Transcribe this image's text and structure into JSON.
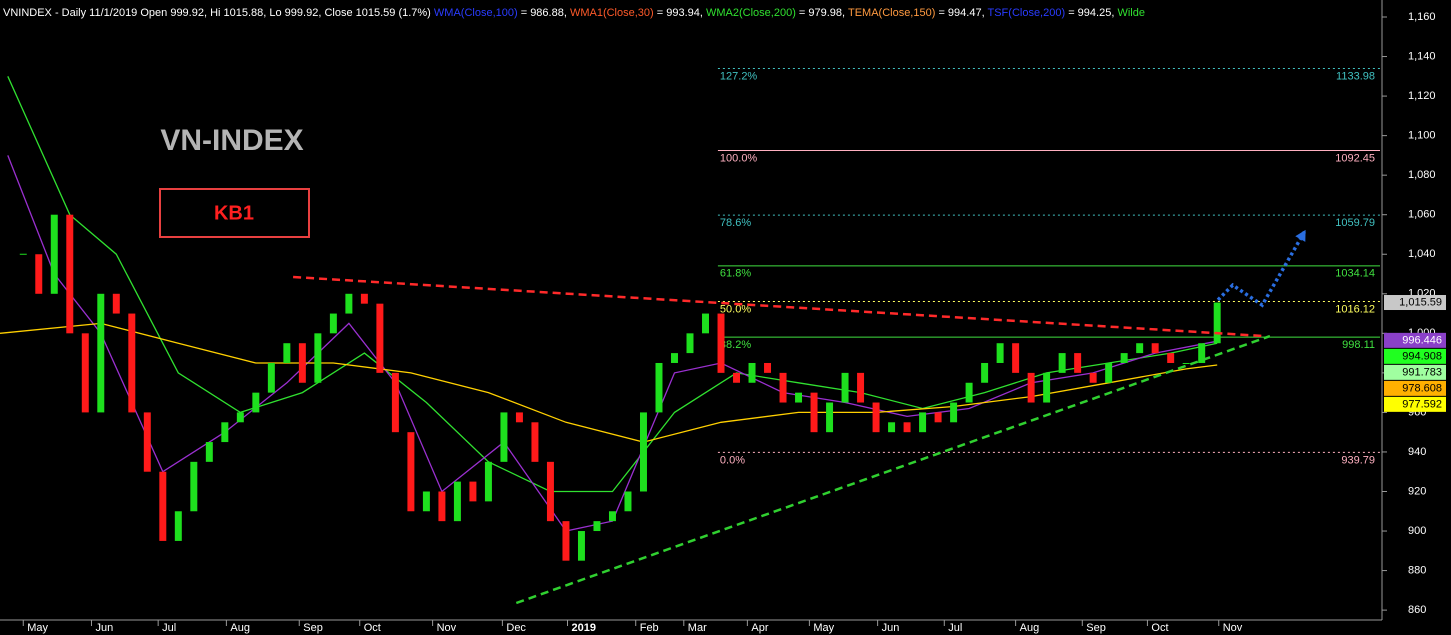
{
  "header": [
    {
      "text": "VNINDEX - Daily 11/1/2019 Open 999.92, Hi 1015.88, Lo 999.92, Close 1015.59 (1.7%) ",
      "color": "#ffffff"
    },
    {
      "text": "WMA(Close,100)",
      "color": "#2a3cff"
    },
    {
      "text": " = 986.88, ",
      "color": "#ffffff"
    },
    {
      "text": "WMA1(Close,30)",
      "color": "#ff5a2a"
    },
    {
      "text": " = 993.94, ",
      "color": "#ffffff"
    },
    {
      "text": "WMA2(Close,200)",
      "color": "#30e030"
    },
    {
      "text": " = 979.98, ",
      "color": "#ffffff"
    },
    {
      "text": "TEMA(Close,150)",
      "color": "#ff9a40"
    },
    {
      "text": " = 994.47, ",
      "color": "#ffffff"
    },
    {
      "text": "TSF(Close,200)",
      "color": "#2a3cff"
    },
    {
      "text": " = 994.25, ",
      "color": "#ffffff"
    },
    {
      "text": "Wilde",
      "color": "#30e030"
    }
  ],
  "chart_data": {
    "type": "candlestick",
    "title": "VN-INDEX",
    "badge": "KB1",
    "up_color": "#1ee01e",
    "down_color": "#ff1a1a",
    "values": [
      1040,
      1020,
      1060,
      1000,
      960,
      1020,
      1010,
      960,
      930,
      895,
      910,
      935,
      945,
      955,
      960,
      970,
      985,
      995,
      975,
      1000,
      1010,
      1020,
      1015,
      980,
      950,
      910,
      920,
      905,
      925,
      915,
      935,
      960,
      955,
      935,
      905,
      885,
      900,
      905,
      910,
      920,
      960,
      985,
      990,
      1000,
      1010,
      980,
      975,
      985,
      980,
      965,
      970,
      950,
      965,
      980,
      965,
      950,
      955,
      950,
      960,
      955,
      965,
      975,
      985,
      995,
      980,
      965,
      980,
      990,
      980,
      975,
      985,
      990,
      995,
      990,
      985,
      985,
      995,
      1015.59
    ],
    "xlim": [
      -1.5,
      87.5
    ],
    "xticks": [
      {
        "value": 0,
        "label": "May"
      },
      {
        "value": 4.4,
        "label": "Jun"
      },
      {
        "value": 8.7,
        "label": "Jul"
      },
      {
        "value": 13.1,
        "label": "Aug"
      },
      {
        "value": 17.8,
        "label": "Sep"
      },
      {
        "value": 21.7,
        "label": "Oct"
      },
      {
        "value": 26.4,
        "label": "Nov"
      },
      {
        "value": 30.9,
        "label": "Dec"
      },
      {
        "value": 35.1,
        "label": "2019"
      },
      {
        "value": 39.5,
        "label": "Feb"
      },
      {
        "value": 42.6,
        "label": "Mar"
      },
      {
        "value": 46.7,
        "label": "Apr"
      },
      {
        "value": 50.7,
        "label": "May"
      },
      {
        "value": 55.1,
        "label": "Jun"
      },
      {
        "value": 59.4,
        "label": "Jul"
      },
      {
        "value": 64,
        "label": "Aug"
      },
      {
        "value": 68.3,
        "label": "Sep"
      },
      {
        "value": 72.5,
        "label": "Oct"
      },
      {
        "value": 77.1,
        "label": "Nov"
      }
    ],
    "ylim": [
      855,
      1168.6
    ],
    "yticks": [
      860,
      880,
      900,
      920,
      940,
      960,
      980,
      {
        "value": 1000,
        "label": "1,000"
      },
      {
        "value": 1020,
        "label": "1,020"
      },
      {
        "value": 1040,
        "label": "1,040"
      },
      {
        "value": 1060,
        "label": "1,060"
      },
      {
        "value": 1080,
        "label": "1,080"
      },
      {
        "value": 1100,
        "label": "1,100"
      },
      {
        "value": 1120,
        "label": "1,120"
      },
      {
        "value": 1140,
        "label": "1,140"
      },
      {
        "value": 1160,
        "label": "1,160"
      }
    ],
    "series": [
      {
        "color": "#30e030",
        "x": [
          -1,
          3,
          6,
          10,
          14,
          18,
          22,
          26,
          30,
          34,
          38,
          42,
          46,
          50,
          54,
          58,
          62,
          66,
          70,
          74,
          77
        ],
        "values": [
          1130,
          1060,
          1040,
          980,
          960,
          970,
          990,
          965,
          935,
          920,
          920,
          960,
          980,
          975,
          970,
          962,
          970,
          980,
          985,
          990,
          995
        ]
      },
      {
        "color": "#9a30d0",
        "x": [
          -1,
          2,
          5,
          9,
          13,
          17,
          21,
          24,
          27,
          31,
          35,
          38,
          42,
          45,
          49,
          53,
          57,
          61,
          65,
          69,
          73,
          77
        ],
        "values": [
          1090,
          1030,
          1000,
          930,
          950,
          975,
          1005,
          975,
          920,
          945,
          900,
          905,
          980,
          985,
          970,
          965,
          958,
          962,
          975,
          980,
          990,
          996
        ]
      },
      {
        "color": "#ffd000",
        "x": [
          -1.5,
          5,
          10,
          15,
          20,
          25,
          30,
          35,
          40,
          45,
          50,
          55,
          60,
          65,
          70,
          75,
          77
        ],
        "values": [
          1000,
          1005,
          995,
          985,
          985,
          980,
          970,
          955,
          945,
          955,
          960,
          960,
          963,
          968,
          975,
          982,
          984
        ]
      }
    ],
    "trendlines": [
      {
        "color": "#ff2a2a",
        "x": [
          17.4,
          80.1
        ],
        "values": [
          1028.5,
          998.6
        ]
      },
      {
        "color": "#30d030",
        "x": [
          31.8,
          80.4
        ],
        "values": [
          863.6,
          998.6
        ]
      }
    ],
    "projection": {
      "color": "#2a6ee0",
      "x": [
        77.05,
        78,
        79.9,
        82.7
      ],
      "values": [
        1016.9,
        1024.4,
        1014.3,
        1052.3
      ]
    },
    "fib": {
      "x_start": 44.8,
      "levels": [
        {
          "label": "127.2%",
          "value": 1133.98,
          "color": "#40c0c0"
        },
        {
          "label": "100.0%",
          "value": 1092.45,
          "color": "#ffb0c0"
        },
        {
          "label": "78.6%",
          "value": 1059.79,
          "color": "#40c0c0"
        },
        {
          "label": "61.8%",
          "value": 1034.14,
          "color": "#40e040"
        },
        {
          "label": "50.0%",
          "value": 1016.12,
          "color": "#ffff60"
        },
        {
          "label": "38.2%",
          "value": 998.11,
          "color": "#40e040"
        },
        {
          "label": "0.0%",
          "value": 939.79,
          "color": "#ffb0c0"
        }
      ]
    },
    "value_tags": [
      {
        "value": 1015.59,
        "label": "1,015.59",
        "color": "#c8c8c8",
        "text_color": "#000000"
      },
      {
        "value": 996.446,
        "color": "#8a40c8",
        "text_color": "#ffffff"
      },
      {
        "value": 994.908,
        "color": "#20ff20",
        "text_color": "#000000"
      },
      {
        "value": 991.783,
        "color": "#a0ffa0",
        "text_color": "#000000"
      },
      {
        "value": 978.608,
        "color": "#ffb000",
        "text_color": "#000000"
      },
      {
        "value": 977.592,
        "color": "#ffff00",
        "text_color": "#000000"
      }
    ]
  }
}
